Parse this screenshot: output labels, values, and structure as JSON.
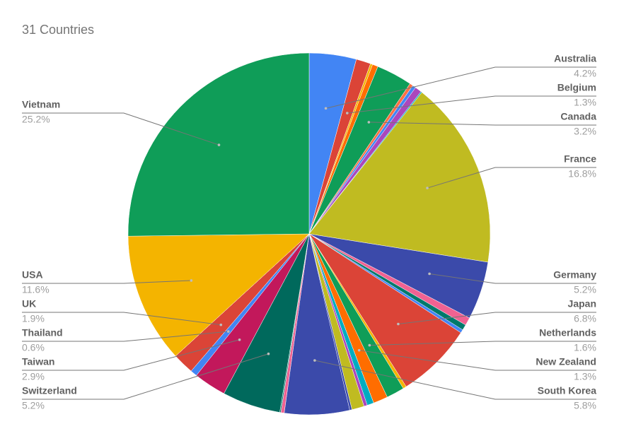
{
  "chart_data": {
    "type": "pie",
    "title": "31 Countries",
    "categories": [
      "Australia",
      "Belgium",
      null,
      null,
      "Canada",
      null,
      null,
      null,
      null,
      "France",
      "Germany",
      null,
      null,
      null,
      "Japan",
      null,
      "Netherlands",
      "New Zealand",
      null,
      null,
      null,
      null,
      "South Korea",
      null,
      null,
      "Switzerland",
      "Taiwan",
      "Thailand",
      "UK",
      "USA",
      "Vietnam"
    ],
    "values": [
      4.2,
      1.3,
      0.2,
      0.5,
      3.2,
      0.3,
      0.3,
      0.6,
      0.1,
      16.8,
      5.2,
      0.7,
      0.5,
      0.3,
      6.8,
      0.3,
      1.6,
      1.3,
      0.6,
      0.3,
      1.1,
      0.2,
      5.8,
      0.3,
      0.1,
      5.2,
      2.9,
      0.6,
      1.9,
      11.6,
      25.2
    ],
    "value_labels": [
      "4.2%",
      "1.3%",
      null,
      null,
      "3.2%",
      null,
      null,
      null,
      null,
      "16.8%",
      "5.2%",
      null,
      null,
      null,
      "6.8%",
      null,
      "1.6%",
      "1.3%",
      null,
      null,
      null,
      null,
      "5.8%",
      null,
      null,
      "5.2%",
      "2.9%",
      "0.6%",
      "1.9%",
      "11.6%",
      "25.2%"
    ],
    "colors": [
      "#4285f4",
      "#db4437",
      "#f4b400",
      "#ff6d00",
      "#0f9d58",
      "#ff7043",
      "#4285f4",
      "#ab47bc",
      "#00acc1",
      "#c0bb21",
      "#3b4aaa",
      "#f06292",
      "#00796b",
      "#4285f4",
      "#db4437",
      "#f4b400",
      "#0f9d58",
      "#ff6d00",
      "#00acc1",
      "#ab47bc",
      "#c0bb21",
      "#3b4aaa",
      "#3b4aaa",
      "#f06292",
      "#00796b",
      "#00695c",
      "#c2185b",
      "#4285f4",
      "#db4437",
      "#f4b400",
      "#0f9d58"
    ]
  }
}
